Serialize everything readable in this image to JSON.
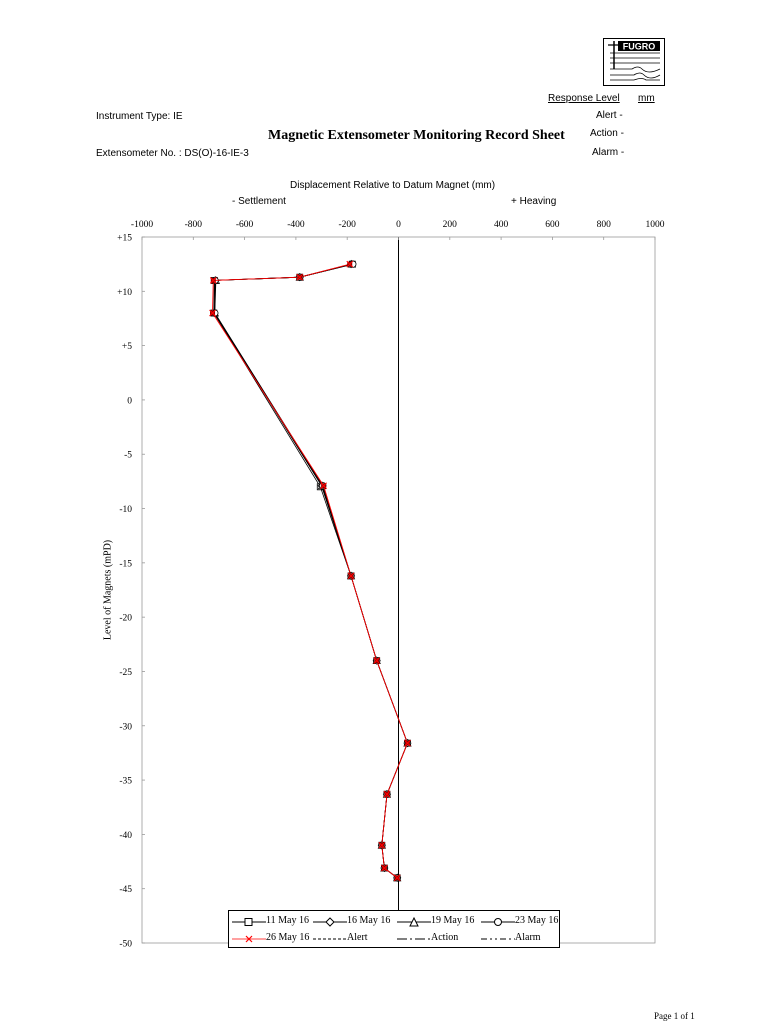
{
  "header": {
    "response_level_label": "Response Level",
    "unit": "mm",
    "alert_label": "Alert -",
    "action_label": "Action -",
    "alarm_label": "Alarm -",
    "instrument_type": "Instrument Type: IE",
    "title": "Magnetic Extensometer Monitoring Record Sheet",
    "extensometer_no": "Extensometer No. : DS(O)-16-IE-3"
  },
  "footer": {
    "page": "Page 1 of 1"
  },
  "logo": {
    "text": "FUGRO"
  },
  "chart_data": {
    "type": "line",
    "title": "Displacement Relative to Datum Magnet  (mm)",
    "settlement_label": "-  Settlement",
    "heaving_label": "+  Heaving",
    "xlabel": "",
    "ylabel": "Level of Magnets  (mPD)",
    "xlim": [
      -1000,
      1000
    ],
    "ylim": [
      -50,
      15
    ],
    "x_ticks": [
      -1000,
      -800,
      -600,
      -400,
      -200,
      0,
      200,
      400,
      600,
      800,
      1000
    ],
    "y_ticks": [
      15,
      10,
      5,
      0,
      -5,
      -10,
      -15,
      -20,
      -25,
      -30,
      -35,
      -40,
      -45,
      -50
    ],
    "y_tick_labels": [
      "+15",
      "+10",
      "+5",
      "0",
      "-5",
      "-10",
      "-15",
      "-20",
      "-25",
      "-30",
      "-35",
      "-40",
      "-45",
      "-50"
    ],
    "grid": false,
    "legend_position": "bottom-center",
    "datum_line_x": 0,
    "series": [
      {
        "name": "11 May 16",
        "marker": "square",
        "color": "#000000",
        "x": [
          -180,
          -385,
          -718,
          -720,
          -305,
          -185,
          -85,
          35,
          -45,
          -65,
          -55,
          -5
        ],
        "y": [
          12.5,
          11.3,
          11.0,
          8.0,
          -8.0,
          -16.2,
          -24.0,
          -31.6,
          -36.3,
          -41.0,
          -43.1,
          -44.0
        ]
      },
      {
        "name": "16 May 16",
        "marker": "diamond",
        "color": "#000000",
        "x": [
          -185,
          -385,
          -715,
          -718,
          -300,
          -185,
          -85,
          35,
          -45,
          -65,
          -55,
          -5
        ],
        "y": [
          12.5,
          11.3,
          11.0,
          8.0,
          -7.9,
          -16.2,
          -24.0,
          -31.6,
          -36.3,
          -41.0,
          -43.1,
          -44.0
        ]
      },
      {
        "name": "19 May 16",
        "marker": "triangle",
        "color": "#000000",
        "x": [
          -182,
          -385,
          -712,
          -716,
          -298,
          -185,
          -85,
          35,
          -45,
          -65,
          -55,
          -5
        ],
        "y": [
          12.5,
          11.3,
          11.0,
          8.0,
          -7.9,
          -16.2,
          -24.0,
          -31.6,
          -36.3,
          -41.0,
          -43.1,
          -44.0
        ]
      },
      {
        "name": "23 May 16",
        "marker": "circle",
        "color": "#000000",
        "x": [
          -178,
          -385,
          -715,
          -716,
          -295,
          -185,
          -85,
          35,
          -45,
          -65,
          -55,
          -5
        ],
        "y": [
          12.5,
          11.3,
          11.0,
          8.0,
          -7.9,
          -16.2,
          -24.0,
          -31.6,
          -36.3,
          -41.0,
          -43.1,
          -44.0
        ]
      },
      {
        "name": "26 May 16",
        "marker": "x",
        "color": "#ff0000",
        "x": [
          -190,
          -385,
          -722,
          -725,
          -292,
          -185,
          -85,
          35,
          -45,
          -65,
          -55,
          -5
        ],
        "y": [
          12.5,
          11.3,
          11.0,
          8.0,
          -7.9,
          -16.2,
          -24.0,
          -31.6,
          -36.3,
          -41.0,
          -43.1,
          -44.0
        ]
      }
    ],
    "legend_extras": [
      {
        "name": "Alert",
        "dash": "3,2"
      },
      {
        "name": "Action",
        "dash": "10,3,2,3"
      },
      {
        "name": "Alarm",
        "dash": "6,3,2,3,2,3"
      }
    ]
  }
}
